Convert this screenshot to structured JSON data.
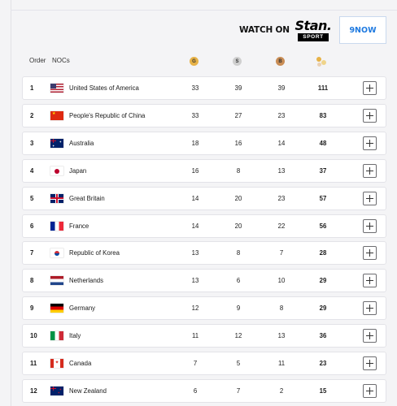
{
  "broadcast": {
    "watch_on": "WATCH ON",
    "stan_word": "Stan.",
    "stan_sport": "SPORT",
    "nine_now": "9NOW"
  },
  "table": {
    "headers": {
      "order": "Order",
      "nocs": "NOCs",
      "gold": "G",
      "silver": "S",
      "bronze": "B",
      "total_icon": "total-medals-icon"
    },
    "rows": [
      {
        "rank": "1",
        "flag": "usa-flag-icon",
        "country": "United States of America",
        "gold": "33",
        "silver": "39",
        "bronze": "39",
        "total": "111"
      },
      {
        "rank": "2",
        "flag": "china-flag-icon",
        "country": "People's Republic of China",
        "gold": "33",
        "silver": "27",
        "bronze": "23",
        "total": "83"
      },
      {
        "rank": "3",
        "flag": "australia-flag-icon",
        "country": "Australia",
        "gold": "18",
        "silver": "16",
        "bronze": "14",
        "total": "48"
      },
      {
        "rank": "4",
        "flag": "japan-flag-icon",
        "country": "Japan",
        "gold": "16",
        "silver": "8",
        "bronze": "13",
        "total": "37"
      },
      {
        "rank": "5",
        "flag": "great-britain-flag-icon",
        "country": "Great Britain",
        "gold": "14",
        "silver": "20",
        "bronze": "23",
        "total": "57"
      },
      {
        "rank": "6",
        "flag": "france-flag-icon",
        "country": "France",
        "gold": "14",
        "silver": "20",
        "bronze": "22",
        "total": "56"
      },
      {
        "rank": "7",
        "flag": "korea-flag-icon",
        "country": "Republic of Korea",
        "gold": "13",
        "silver": "8",
        "bronze": "7",
        "total": "28"
      },
      {
        "rank": "8",
        "flag": "netherlands-flag-icon",
        "country": "Netherlands",
        "gold": "13",
        "silver": "6",
        "bronze": "10",
        "total": "29"
      },
      {
        "rank": "9",
        "flag": "germany-flag-icon",
        "country": "Germany",
        "gold": "12",
        "silver": "9",
        "bronze": "8",
        "total": "29"
      },
      {
        "rank": "10",
        "flag": "italy-flag-icon",
        "country": "Italy",
        "gold": "11",
        "silver": "12",
        "bronze": "13",
        "total": "36"
      },
      {
        "rank": "11",
        "flag": "canada-flag-icon",
        "country": "Canada",
        "gold": "7",
        "silver": "5",
        "bronze": "11",
        "total": "23"
      },
      {
        "rank": "12",
        "flag": "new-zealand-flag-icon",
        "country": "New Zealand",
        "gold": "6",
        "silver": "7",
        "bronze": "2",
        "total": "15"
      }
    ]
  },
  "colors": {
    "gold": "#e7b247",
    "silver": "#cfcfcf",
    "bronze": "#c98d55",
    "nine_now_blue": "#1f7ae0"
  }
}
